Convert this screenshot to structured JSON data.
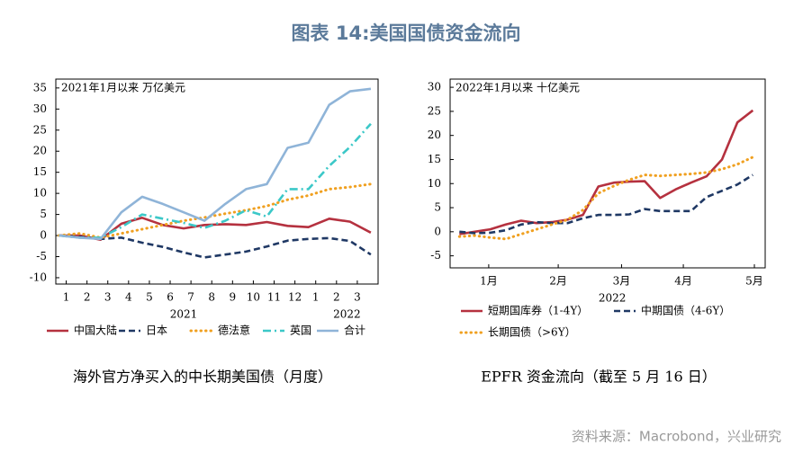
{
  "title": "图表 14:美国国债资金流向",
  "source": "资料来源：Macrobond，兴业研究",
  "chart_data": [
    {
      "type": "line",
      "annotation": "2021年1月以来  万亿美元",
      "caption": "海外官方净买入的中长期美国债（月度）",
      "x": [
        0,
        1,
        2,
        3,
        4,
        5,
        6,
        7,
        8,
        9,
        10,
        11,
        12,
        13,
        14,
        15
      ],
      "xlim": [
        -0.15,
        15.35
      ],
      "xticks": [
        {
          "value": 0.35,
          "label": "1"
        },
        {
          "value": 1.35,
          "label": "2"
        },
        {
          "value": 2.35,
          "label": "3"
        },
        {
          "value": 3.35,
          "label": "4"
        },
        {
          "value": 4.35,
          "label": "5"
        },
        {
          "value": 5.35,
          "label": "6"
        },
        {
          "value": 6.35,
          "label": "7"
        },
        {
          "value": 7.35,
          "label": "8"
        },
        {
          "value": 8.35,
          "label": "9"
        },
        {
          "value": 9.35,
          "label": "10"
        },
        {
          "value": 10.35,
          "label": "11"
        },
        {
          "value": 11.35,
          "label": "12"
        },
        {
          "value": 12.35,
          "label": "1"
        },
        {
          "value": 13.35,
          "label": "2"
        },
        {
          "value": 14.35,
          "label": "3"
        }
      ],
      "xgroups": [
        {
          "value": 6.0,
          "label": "2021"
        },
        {
          "value": 13.85,
          "label": "2022"
        }
      ],
      "ylim": [
        -11.5,
        37.1
      ],
      "yticks": [
        -10,
        -5,
        0,
        5,
        10,
        15,
        20,
        25,
        30,
        35
      ],
      "series": [
        {
          "name": "中国大陆",
          "color": "#b5313f",
          "dash": "solid",
          "values": [
            0,
            0,
            -1,
            2.8,
            4.2,
            2.5,
            1.7,
            2.5,
            2.7,
            2.5,
            3.2,
            2.3,
            2,
            4,
            3.3,
            0.7
          ]
        },
        {
          "name": "日本",
          "color": "#1f3864",
          "dash": "dashed",
          "values": [
            0,
            -0.3,
            -0.8,
            -0.5,
            -1.7,
            -2.7,
            -4,
            -5.2,
            -4.5,
            -3.8,
            -2.6,
            -1.2,
            -0.8,
            -0.6,
            -1.3,
            -4.5
          ]
        },
        {
          "name": "德法意",
          "color": "#f0a020",
          "dash": "dotted",
          "values": [
            0,
            0.5,
            -0.5,
            0.5,
            1.5,
            2.5,
            3.5,
            4.3,
            5.2,
            6,
            7,
            8.5,
            9.5,
            11,
            11.5,
            12.2
          ]
        },
        {
          "name": "英国",
          "color": "#3cc8c8",
          "dash": "dashdot",
          "values": [
            0,
            -0.5,
            -0.5,
            2,
            5,
            4,
            3,
            1.8,
            3.5,
            6,
            4.5,
            11,
            11,
            16.5,
            21,
            26.5
          ]
        },
        {
          "name": "合计",
          "color": "#8fb4d8",
          "dash": "solid",
          "values": [
            0,
            -0.5,
            -0.8,
            5.5,
            9.2,
            7.5,
            5.5,
            3.5,
            7.5,
            11,
            12.2,
            20.8,
            22,
            31,
            34.2,
            34.8
          ]
        }
      ]
    },
    {
      "type": "line",
      "annotation": "2022年1月以来  十亿美元",
      "caption": "EPFR 资金流向（截至 5 月 16 日）",
      "x": [
        0,
        1,
        2,
        3,
        4,
        5,
        6,
        7,
        8,
        9,
        10,
        11,
        12,
        13,
        14,
        15,
        16,
        17,
        18,
        19
      ],
      "xlim": [
        -0.6,
        19.8
      ],
      "xticks": [
        {
          "value": 1.9,
          "label": "1月"
        },
        {
          "value": 6.4,
          "label": "2月"
        },
        {
          "value": 10.5,
          "label": "3月"
        },
        {
          "value": 14.5,
          "label": "4月"
        },
        {
          "value": 19.1,
          "label": "5月"
        }
      ],
      "xgroups": [
        {
          "value": 9.9,
          "label": "2022"
        }
      ],
      "ylim": [
        -7.5,
        31.7
      ],
      "yticks": [
        -5,
        0,
        5,
        10,
        15,
        20,
        25,
        30
      ],
      "series": [
        {
          "name": "短期国库券（1-4Y）",
          "color": "#b5313f",
          "dash": "solid",
          "values": [
            -0.5,
            0,
            0.5,
            1.5,
            2.3,
            1.8,
            2,
            2.5,
            3.5,
            9.4,
            10.2,
            10.4,
            10.5,
            7,
            8.8,
            10.2,
            11.5,
            15,
            22.7,
            25.2
          ]
        },
        {
          "name": "中期国债（4-6Y）",
          "color": "#1f3864",
          "dash": "dashed",
          "values": [
            0,
            -0.3,
            -0.2,
            0.3,
            1.5,
            2,
            1.8,
            1.8,
            2.8,
            3.5,
            3.5,
            3.6,
            4.7,
            4.3,
            4.3,
            4.3,
            7.2,
            8.5,
            9.8,
            11.8
          ]
        },
        {
          "name": "长期国债（>6Y）",
          "color": "#f0a020",
          "dash": "dotted",
          "values": [
            -1,
            -0.8,
            -1.2,
            -1.5,
            -0.5,
            0.5,
            1.5,
            2.5,
            4.5,
            8,
            9.5,
            10.8,
            11.8,
            11.6,
            11.8,
            12,
            12.3,
            13,
            14,
            15.5
          ]
        }
      ]
    }
  ]
}
